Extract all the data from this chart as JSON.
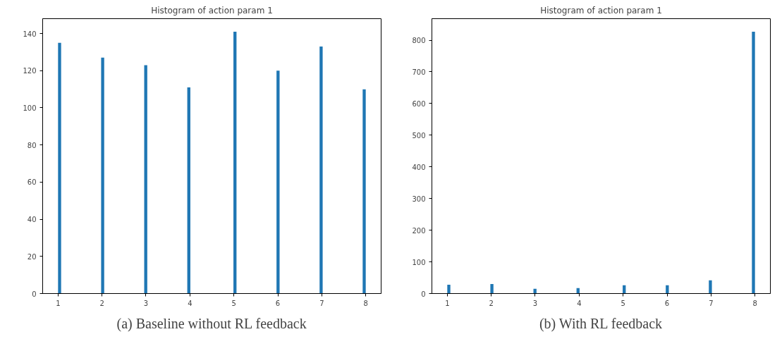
{
  "chart_data": [
    {
      "type": "histogram",
      "title": "Histogram of action param 1",
      "annotations": [
        "(a) Baseline without RL feedback"
      ],
      "color": "#1f77b4",
      "bins": [
        1,
        1.07,
        1.98,
        2.05,
        2.96,
        3.03,
        3.94,
        4.01,
        4.99,
        5.06,
        5.97,
        6.04,
        6.95,
        7.02,
        7.93,
        8
      ],
      "values": [
        135,
        0,
        127,
        0,
        123,
        0,
        111,
        0,
        141,
        0,
        120,
        0,
        133,
        0,
        110
      ],
      "xlim": [
        0.65,
        8.35
      ],
      "xticks": [
        1,
        2,
        3,
        4,
        5,
        6,
        7,
        8
      ],
      "ylim": [
        0,
        148
      ],
      "yticks": [
        0,
        20,
        40,
        60,
        80,
        100,
        120,
        140
      ],
      "grid": false
    },
    {
      "type": "histogram",
      "title": "Histogram of action param 1",
      "annotations": [
        "(b) With RL feedback"
      ],
      "color": "#1f77b4",
      "bins": [
        1,
        1.07,
        1.98,
        2.05,
        2.96,
        3.03,
        3.94,
        4.01,
        4.99,
        5.06,
        5.97,
        6.04,
        6.95,
        7.02,
        7.93,
        8
      ],
      "values": [
        28,
        0,
        30,
        0,
        15,
        0,
        17,
        0,
        26,
        0,
        26,
        0,
        42,
        0,
        827
      ],
      "xlim": [
        0.65,
        8.35
      ],
      "xticks": [
        1,
        2,
        3,
        4,
        5,
        6,
        7,
        8
      ],
      "ylim": [
        0,
        868
      ],
      "yticks": [
        0,
        100,
        200,
        300,
        400,
        500,
        600,
        700,
        800
      ],
      "grid": false
    }
  ]
}
